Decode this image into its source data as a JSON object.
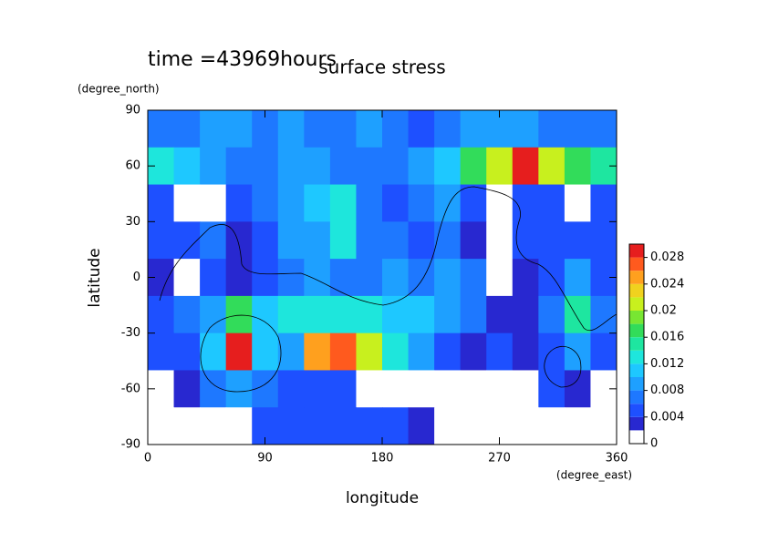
{
  "chart_data": {
    "type": "contour",
    "title": "surface stress",
    "subtitle": "time =43969hours",
    "x_label": "longitude",
    "x_units": "(degree_east)",
    "y_label": "latitude",
    "y_units": "(degree_north)",
    "xlim": [
      0,
      360
    ],
    "xticks": [
      0,
      90,
      180,
      270,
      360
    ],
    "ylim": [
      -90,
      90
    ],
    "yticks": [
      -90,
      -60,
      -30,
      0,
      30,
      60,
      90
    ],
    "x": [
      10,
      30,
      50,
      70,
      90,
      110,
      130,
      150,
      170,
      190,
      210,
      230,
      250,
      270,
      290,
      310,
      330,
      350
    ],
    "y": [
      80,
      60,
      40,
      20,
      0,
      -20,
      -40,
      -60,
      -80
    ],
    "z": [
      [
        0.006,
        0.006,
        0.008,
        0.008,
        0.007,
        0.009,
        0.006,
        0.006,
        0.008,
        0.006,
        0.005,
        0.006,
        0.008,
        0.009,
        0.008,
        0.007,
        0.006,
        0.006
      ],
      [
        0.012,
        0.01,
        0.008,
        0.006,
        0.006,
        0.008,
        0.008,
        0.006,
        0.006,
        0.006,
        0.008,
        0.01,
        0.016,
        0.02,
        0.03,
        0.02,
        0.016,
        0.014
      ],
      [
        0.004,
        0.001,
        0.001,
        0.004,
        0.006,
        0.008,
        0.01,
        0.012,
        0.006,
        0.004,
        0.006,
        0.008,
        0.004,
        0.001,
        0.004,
        0.005,
        0.001,
        0.004
      ],
      [
        0.004,
        0.004,
        0.006,
        0.003,
        0.004,
        0.008,
        0.008,
        0.012,
        0.006,
        0.006,
        0.004,
        0.006,
        0.002,
        0.001,
        0.004,
        0.005,
        0.004,
        0.005
      ],
      [
        0.003,
        0.001,
        0.004,
        0.003,
        0.004,
        0.006,
        0.008,
        0.006,
        0.006,
        0.008,
        0.006,
        0.008,
        0.006,
        0.001,
        0.002,
        0.004,
        0.008,
        0.004
      ],
      [
        0.005,
        0.006,
        0.008,
        0.016,
        0.01,
        0.012,
        0.012,
        0.012,
        0.012,
        0.01,
        0.01,
        0.008,
        0.006,
        0.003,
        0.003,
        0.006,
        0.014,
        0.006
      ],
      [
        0.004,
        0.004,
        0.01,
        0.028,
        0.01,
        0.008,
        0.024,
        0.026,
        0.02,
        0.012,
        0.008,
        0.004,
        0.003,
        0.004,
        0.002,
        0.004,
        0.008,
        0.004
      ],
      [
        0.001,
        0.003,
        0.006,
        0.008,
        0.006,
        0.004,
        0.004,
        0.004,
        0.001,
        0.001,
        0.001,
        0.001,
        0.001,
        0.001,
        0.001,
        0.004,
        0.003,
        0.001
      ],
      [
        0.001,
        0.001,
        0.001,
        0.001,
        0.005,
        0.004,
        0.004,
        0.004,
        0.004,
        0.004,
        0.003,
        0.001,
        0.001,
        0.001,
        0.001,
        0.001,
        0.001,
        0.001
      ]
    ],
    "levels": [
      0,
      0.002,
      0.004,
      0.006,
      0.008,
      0.01,
      0.012,
      0.014,
      0.016,
      0.018,
      0.02,
      0.022,
      0.024,
      0.026,
      0.028,
      0.03
    ],
    "colors": [
      "#ffffff",
      "#2828d0",
      "#1e50ff",
      "#1e78ff",
      "#1ea0ff",
      "#1ec8ff",
      "#1ee6dc",
      "#1ee6a0",
      "#32dc5a",
      "#78e632",
      "#c8f01e",
      "#f0d21e",
      "#ffa01e",
      "#ff5a1e",
      "#e61e1e"
    ],
    "zlim": [
      0,
      0.03
    ],
    "zticks": [
      0,
      0.004,
      0.008,
      0.012,
      0.016,
      0.02,
      0.024,
      0.028
    ]
  }
}
